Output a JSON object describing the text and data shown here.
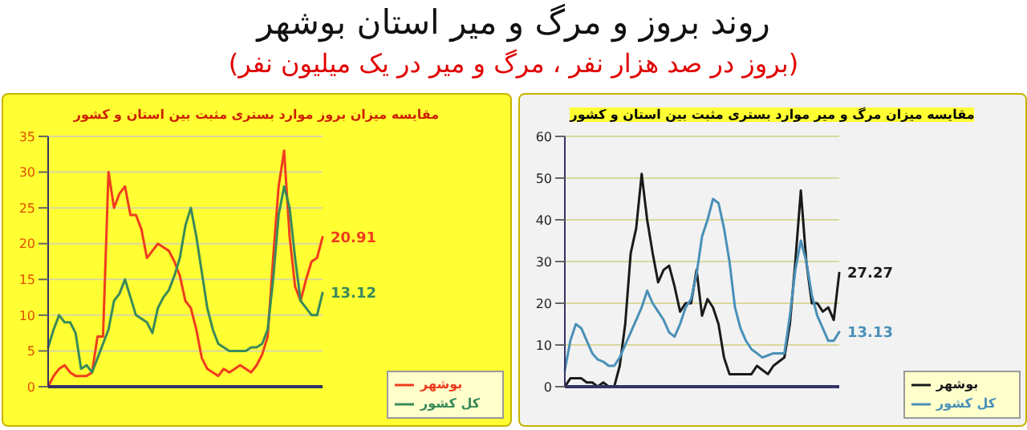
{
  "chart_data": [
    {
      "type": "other",
      "title": "روند بروز و مرگ و میر استان بوشهر",
      "subtitle": "(بروز در صد هزار نفر ، مرگ و میر در یک میلیون نفر)"
    },
    {
      "type": "line",
      "title": "مقایسه میزان بروز موارد بستری مثبت بین استان و کشور",
      "categories": [
        null,
        null,
        null,
        null,
        null,
        null,
        null,
        null,
        null,
        null,
        null,
        null,
        null,
        null,
        null,
        null,
        null,
        null,
        null,
        null,
        null,
        null,
        null,
        null,
        null,
        null,
        null,
        null,
        null,
        null,
        null,
        null,
        null,
        null,
        null,
        null,
        null,
        null,
        null,
        null,
        null,
        null,
        null,
        null,
        null,
        null,
        null,
        null,
        null,
        null,
        null
      ],
      "series": [
        {
          "name": "بوشهر",
          "color": "#f03c1e",
          "values": [
            0,
            1.5,
            2.5,
            3,
            2,
            1.5,
            1.5,
            1.5,
            2,
            7,
            7,
            30,
            25,
            27,
            28,
            24,
            24,
            22,
            18,
            19,
            20,
            19.5,
            19,
            17.5,
            15.5,
            12,
            11,
            8,
            4,
            2.5,
            2,
            1.5,
            2.5,
            2,
            2.5,
            3,
            2.5,
            2,
            3,
            4.5,
            7,
            18,
            28,
            33,
            21,
            14,
            12,
            15,
            17.5,
            18,
            20.91
          ],
          "value_labels": [
            null,
            null,
            null,
            null,
            null,
            null,
            null,
            null,
            null,
            null,
            null,
            null,
            null,
            null,
            null,
            null,
            null,
            null,
            null,
            null,
            null,
            null,
            null,
            null,
            null,
            null,
            null,
            null,
            null,
            null,
            null,
            null,
            null,
            null,
            null,
            null,
            null,
            null,
            null,
            null,
            null,
            null,
            null,
            null,
            null,
            null,
            null,
            null,
            null,
            null,
            "20.91"
          ]
        },
        {
          "name": "کل کشور",
          "color": "#3a8a5a",
          "values": [
            5.5,
            8,
            10,
            9,
            9,
            7.5,
            2.5,
            3,
            2,
            4,
            6,
            8,
            12,
            13,
            15,
            12.5,
            10,
            9.5,
            9,
            7.5,
            11,
            12.5,
            13.5,
            15.5,
            18,
            22.5,
            25,
            21,
            16,
            11,
            8,
            6,
            5.5,
            5,
            5,
            5,
            5,
            5.5,
            5.5,
            6,
            8,
            15,
            24,
            28,
            25,
            18,
            12,
            11,
            10,
            10,
            13.12
          ],
          "value_labels": [
            null,
            null,
            null,
            null,
            null,
            null,
            null,
            null,
            null,
            null,
            null,
            null,
            null,
            null,
            null,
            null,
            null,
            null,
            null,
            null,
            null,
            null,
            null,
            null,
            null,
            null,
            null,
            null,
            null,
            null,
            null,
            null,
            null,
            null,
            null,
            null,
            null,
            null,
            null,
            null,
            null,
            null,
            null,
            null,
            null,
            null,
            null,
            null,
            null,
            null,
            "13.12"
          ]
        }
      ],
      "ylim": [
        0,
        35
      ],
      "yticks": [
        0,
        5,
        10,
        15,
        20,
        25,
        30,
        35
      ],
      "grid": "y",
      "legend": "bottom right",
      "marker": "none",
      "line_style": "solid"
    },
    {
      "type": "line",
      "title": "مقایسه میزان مرگ و میر موارد بستری مثبت بین استان و کشور",
      "categories": [
        null,
        null,
        null,
        null,
        null,
        null,
        null,
        null,
        null,
        null,
        null,
        null,
        null,
        null,
        null,
        null,
        null,
        null,
        null,
        null,
        null,
        null,
        null,
        null,
        null,
        null,
        null,
        null,
        null,
        null,
        null,
        null,
        null,
        null,
        null,
        null,
        null,
        null,
        null,
        null,
        null,
        null,
        null,
        null,
        null,
        null,
        null,
        null,
        null,
        null,
        null
      ],
      "series": [
        {
          "name": "بوشهر",
          "color": "#1a1a1a",
          "values": [
            0,
            2,
            2,
            2,
            1,
            1,
            0,
            1,
            0,
            0,
            5,
            15,
            32,
            38,
            51,
            40,
            32,
            25,
            28,
            29,
            24,
            18,
            20,
            20,
            28,
            17,
            21,
            19,
            15,
            7,
            3,
            3,
            3,
            3,
            3,
            5,
            4,
            3,
            5,
            6,
            7,
            15,
            30,
            47,
            30,
            20,
            20,
            18,
            19,
            16,
            27.27
          ],
          "value_labels": [
            null,
            null,
            null,
            null,
            null,
            null,
            null,
            null,
            null,
            null,
            null,
            null,
            null,
            null,
            null,
            null,
            null,
            null,
            null,
            null,
            null,
            null,
            null,
            null,
            null,
            null,
            null,
            null,
            null,
            null,
            null,
            null,
            null,
            null,
            null,
            null,
            null,
            null,
            null,
            null,
            null,
            null,
            null,
            null,
            null,
            null,
            null,
            null,
            null,
            null,
            "27.27"
          ]
        },
        {
          "name": "کل کشور",
          "color": "#4a90b8",
          "values": [
            4,
            11,
            15,
            14,
            11,
            8,
            6.5,
            6,
            5,
            5,
            7,
            10,
            13,
            16,
            19,
            23,
            20,
            18,
            16,
            13,
            12,
            15,
            19,
            21,
            27,
            36,
            40,
            45,
            44,
            38,
            30,
            19,
            14,
            11,
            9,
            8,
            7,
            7.5,
            8,
            8,
            8,
            17,
            28,
            35,
            30,
            22,
            17,
            14,
            11,
            11,
            13.13
          ],
          "value_labels": [
            null,
            null,
            null,
            null,
            null,
            null,
            null,
            null,
            null,
            null,
            null,
            null,
            null,
            null,
            null,
            null,
            null,
            null,
            null,
            null,
            null,
            null,
            null,
            null,
            null,
            null,
            null,
            null,
            null,
            null,
            null,
            null,
            null,
            null,
            null,
            null,
            null,
            null,
            null,
            null,
            null,
            null,
            null,
            null,
            null,
            null,
            null,
            null,
            null,
            null,
            "13.13"
          ]
        }
      ],
      "ylim": [
        0,
        60
      ],
      "yticks": [
        0,
        10,
        20,
        30,
        40,
        50,
        60
      ],
      "grid": "y",
      "legend": "bottom right",
      "marker": "none",
      "line_style": "solid"
    }
  ]
}
